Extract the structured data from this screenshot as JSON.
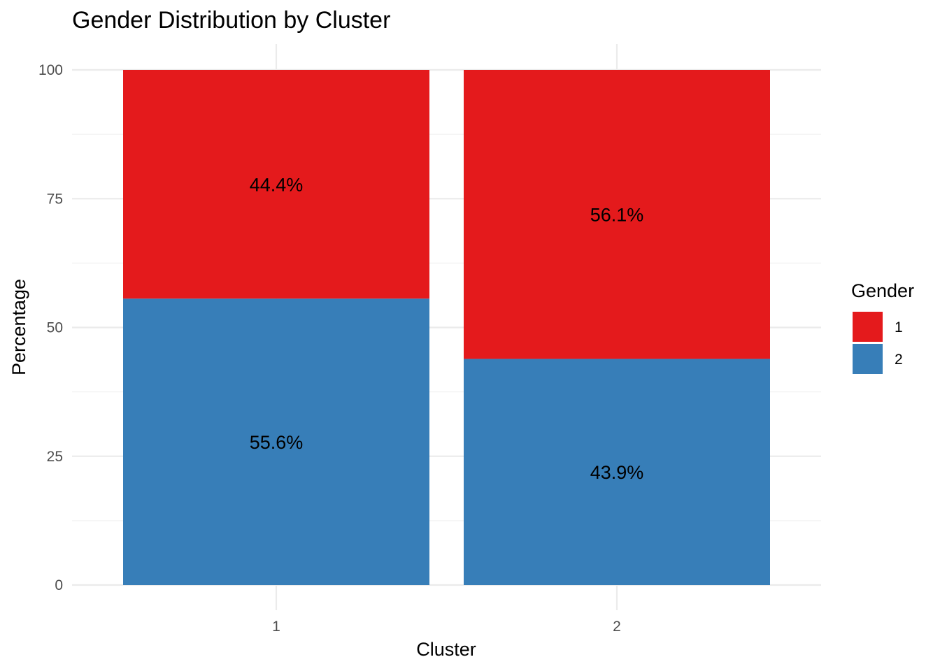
{
  "chart_data": {
    "type": "bar",
    "stacked": true,
    "title": "Gender Distribution by Cluster",
    "xlabel": "Cluster",
    "ylabel": "Percentage",
    "categories": [
      "1",
      "2"
    ],
    "ylim": [
      0,
      100
    ],
    "yticks": [
      "0",
      "25",
      "50",
      "75",
      "100"
    ],
    "grid": true,
    "legend": {
      "title": "Gender",
      "position": "right"
    },
    "series": [
      {
        "name": "1",
        "color": "#e41a1c",
        "values": [
          44.4,
          56.1
        ],
        "labels": [
          "44.4%",
          "56.1%"
        ]
      },
      {
        "name": "2",
        "color": "#377eb8",
        "values": [
          55.6,
          43.9
        ],
        "labels": [
          "55.6%",
          "43.9%"
        ]
      }
    ]
  }
}
